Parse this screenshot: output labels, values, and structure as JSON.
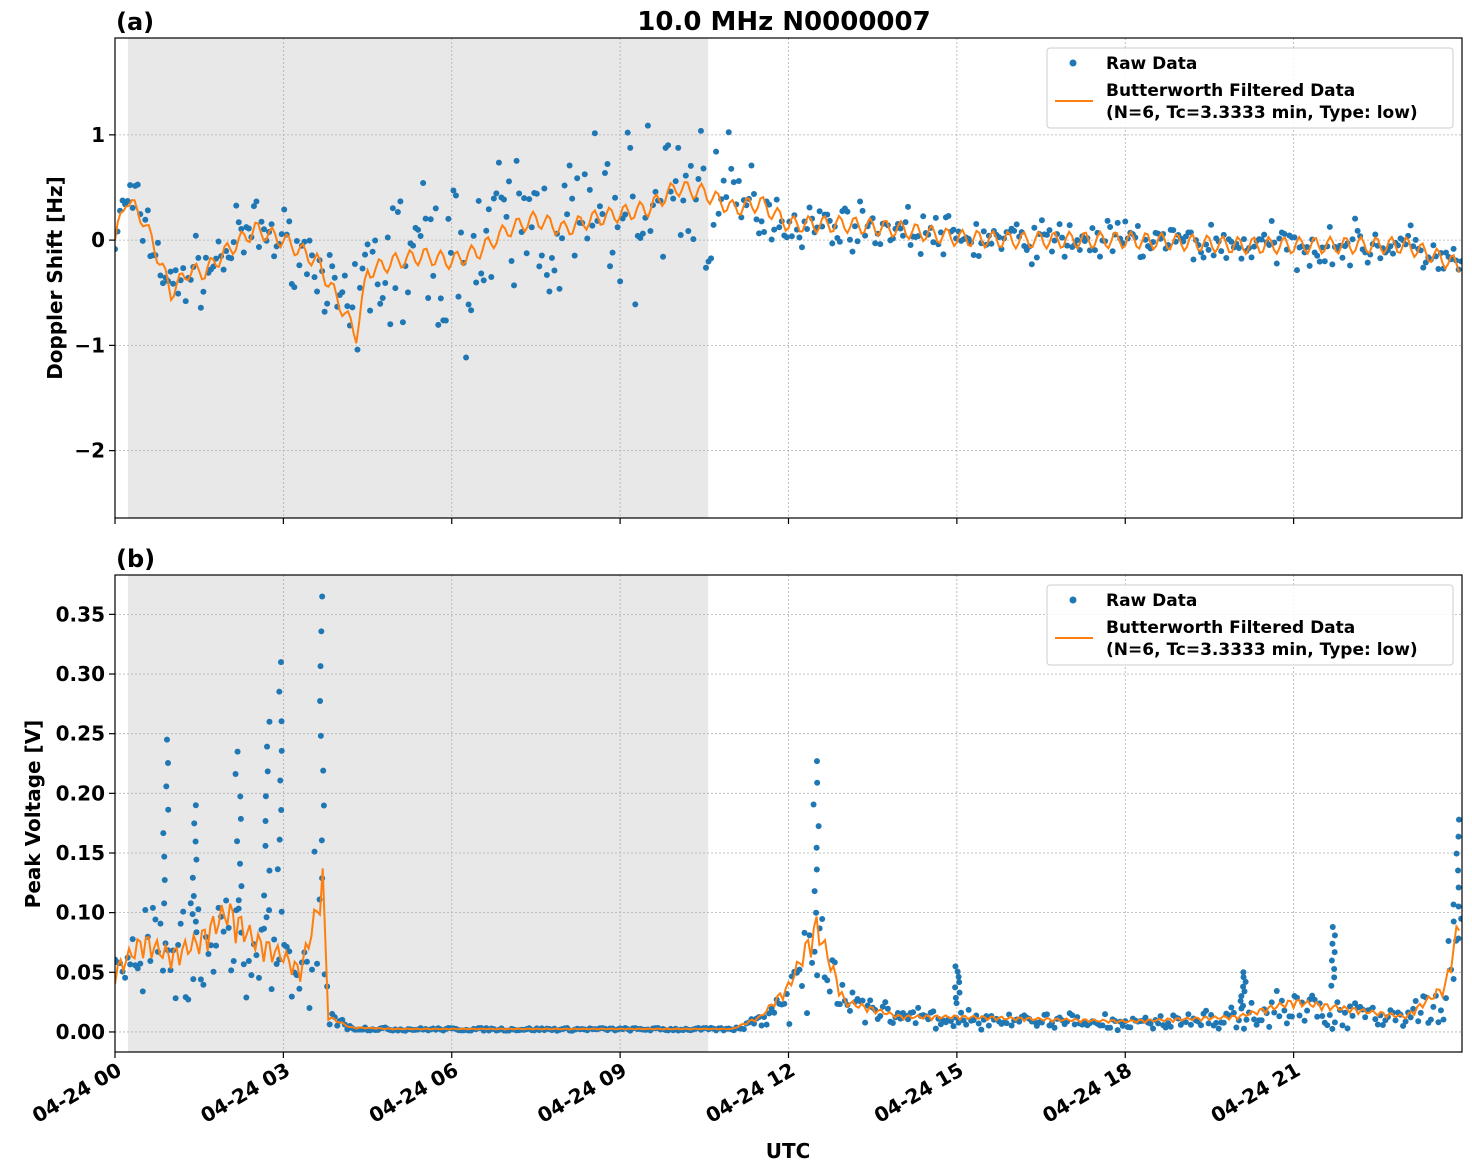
{
  "title": "10.0 MHz N0000007",
  "xlabel": "UTC",
  "x_tick_labels": [
    "04-24 00",
    "04-24 03",
    "04-24 06",
    "04-24 09",
    "04-24 12",
    "04-24 15",
    "04-24 18",
    "04-24 21"
  ],
  "x_tick_hours": [
    0,
    3,
    6,
    9,
    12,
    15,
    18,
    21
  ],
  "xlim_hours": [
    0,
    24
  ],
  "shaded_region_hours": [
    0.23,
    10.57
  ],
  "colors": {
    "raw": "#1f77b4",
    "filtered": "#ff7f0e",
    "shade": "#e8e8e8"
  },
  "chart_data": [
    {
      "type": "scatter+line",
      "panel_label": "(a)",
      "ylabel": "Doppler Shift [Hz]",
      "ylim": [
        -2.64,
        1.92
      ],
      "y_ticks": [
        1,
        0,
        -1,
        -2
      ],
      "y_tick_labels": [
        "1",
        "0",
        "−1",
        "−2"
      ],
      "legend": {
        "placement": "top-right",
        "raw": "Raw Data",
        "filtered_line1": "Butterworth Filtered Data",
        "filtered_line2": "(N=6, Tc=3.3333 min, Type: low)"
      },
      "filtered": {
        "x": [
          0,
          0.2,
          0.5,
          0.8,
          1.0,
          1.3,
          1.6,
          2.0,
          2.5,
          3.0,
          3.3,
          3.6,
          4.0,
          4.3,
          4.5,
          5.0,
          5.5,
          6.0,
          6.5,
          7.0,
          7.5,
          8.0,
          8.5,
          9.0,
          9.5,
          10.0,
          10.5,
          11.0,
          11.5,
          12.0,
          13,
          14,
          15,
          16,
          17,
          18,
          19,
          20,
          21,
          22,
          23,
          24
        ],
        "y": [
          0.0,
          0.4,
          0.2,
          -0.2,
          -0.5,
          -0.3,
          -0.3,
          -0.1,
          0.1,
          0.0,
          -0.1,
          -0.2,
          -0.6,
          -0.9,
          -0.3,
          -0.2,
          -0.15,
          -0.2,
          -0.1,
          0.1,
          0.2,
          0.1,
          0.2,
          0.25,
          0.3,
          0.5,
          0.45,
          0.3,
          0.35,
          0.15,
          0.15,
          0.1,
          0.02,
          0.0,
          0.0,
          0.0,
          -0.02,
          -0.05,
          -0.05,
          -0.05,
          -0.05,
          -0.25
        ]
      },
      "raw_spread": {
        "x": [
          0,
          4.2,
          4.3,
          10.5,
          12,
          24
        ],
        "halfwidth": [
          0.3,
          0.3,
          0.8,
          0.8,
          0.2,
          0.2
        ]
      }
    },
    {
      "type": "scatter+line",
      "panel_label": "(b)",
      "ylabel": "Peak Voltage [V]",
      "ylim": [
        -0.0168,
        0.383
      ],
      "y_ticks": [
        0,
        0.05,
        0.1,
        0.15,
        0.2,
        0.25,
        0.3,
        0.35
      ],
      "y_tick_labels": [
        "0.00",
        "0.05",
        "0.10",
        "0.15",
        "0.20",
        "0.25",
        "0.30",
        "0.35"
      ],
      "legend": {
        "placement": "top-right",
        "raw": "Raw Data",
        "filtered_line1": "Butterworth Filtered Data",
        "filtered_line2": "(N=6, Tc=3.3333 min, Type: low)"
      },
      "filtered": {
        "x": [
          0,
          0.5,
          1,
          1.5,
          2,
          2.5,
          3,
          3.3,
          3.6,
          3.7,
          3.8,
          4.2,
          5,
          8,
          11,
          11.5,
          12,
          12.5,
          13,
          14,
          15,
          18,
          20,
          21,
          22,
          23,
          23.7,
          24
        ],
        "y": [
          0.04,
          0.06,
          0.05,
          0.06,
          0.08,
          0.06,
          0.05,
          0.04,
          0.08,
          0.1,
          0.01,
          0.003,
          0.002,
          0.002,
          0.002,
          0.01,
          0.03,
          0.07,
          0.02,
          0.01,
          0.01,
          0.007,
          0.01,
          0.02,
          0.015,
          0.01,
          0.03,
          0.08
        ]
      },
      "raw_peaks": {
        "x": [
          0.9,
          1.4,
          2.2,
          2.7,
          2.95,
          3.7,
          12.5,
          15,
          20.1,
          21.7,
          23.9
        ],
        "y": [
          0.245,
          0.19,
          0.235,
          0.26,
          0.31,
          0.365,
          0.227,
          0.055,
          0.05,
          0.088,
          0.178
        ]
      }
    }
  ]
}
